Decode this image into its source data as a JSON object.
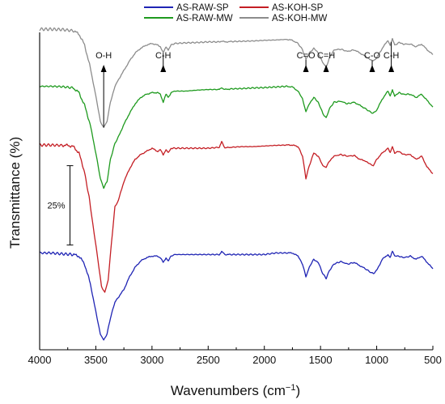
{
  "chart_data": {
    "type": "line",
    "xlabel": "Wavenumbers (cm",
    "xlabel_sup": "−1",
    "xlabel_end": ")",
    "ylabel": "Transmittance (%)",
    "xlim": [
      4000,
      500
    ],
    "x_ticks": [
      4000,
      3500,
      3000,
      2500,
      2000,
      1500,
      1000,
      500
    ],
    "x_tick_labels": [
      "4000",
      "3500",
      "3000",
      "2500",
      "2000",
      "1500",
      "1000",
      "500"
    ],
    "ylim": [
      0,
      100
    ],
    "y_ticks_shown": false,
    "grid": false,
    "legend_position": "top",
    "scale_bar": {
      "label": "25%",
      "x": 3730,
      "y_low": 33,
      "y_high": 58
    },
    "annotations": [
      {
        "label": "O-H",
        "x": 3430
      },
      {
        "label": "C-H",
        "x": 2900
      },
      {
        "label": "C=O",
        "x": 1630
      },
      {
        "label": "C=H",
        "x": 1450
      },
      {
        "label": "C-O",
        "x": 1040
      },
      {
        "label": "C-H",
        "x": 870
      }
    ],
    "series": [
      {
        "name": "AS-RAW-SP",
        "color": "#1f24b4",
        "x": [
          4000,
          3900,
          3800,
          3700,
          3650,
          3600,
          3550,
          3500,
          3460,
          3430,
          3400,
          3370,
          3330,
          3300,
          3250,
          3200,
          3150,
          3100,
          3050,
          3000,
          2950,
          2925,
          2900,
          2875,
          2855,
          2830,
          2800,
          2700,
          2600,
          2500,
          2400,
          2380,
          2350,
          2300,
          2200,
          2100,
          2000,
          1900,
          1800,
          1750,
          1700,
          1660,
          1630,
          1600,
          1560,
          1520,
          1480,
          1450,
          1420,
          1380,
          1320,
          1260,
          1200,
          1150,
          1100,
          1060,
          1030,
          1000,
          950,
          900,
          880,
          860,
          840,
          800,
          760,
          700,
          650,
          600,
          550,
          500
        ],
        "values": [
          30.5,
          30.5,
          30.2,
          30,
          29.5,
          27,
          21,
          12,
          5,
          3,
          5,
          10,
          15,
          16.5,
          19,
          23,
          26,
          28,
          29,
          29.5,
          29.5,
          29,
          27.5,
          29,
          28,
          29.5,
          30,
          30,
          30,
          30,
          30,
          31,
          30,
          30,
          30,
          30,
          30,
          30.5,
          30.5,
          30.5,
          29.5,
          27,
          23,
          26,
          28.5,
          27.5,
          24,
          22.5,
          25,
          27,
          27.8,
          27,
          27.5,
          26.5,
          25.5,
          24.5,
          24,
          25,
          28.5,
          30,
          29,
          31,
          29.5,
          29.5,
          29,
          29.5,
          28.5,
          29.5,
          27.5,
          25.5
        ]
      },
      {
        "name": "AS-KOH-SP",
        "color": "#c41e24",
        "x": [
          4000,
          3900,
          3800,
          3750,
          3700,
          3650,
          3600,
          3560,
          3520,
          3480,
          3450,
          3420,
          3390,
          3360,
          3330,
          3300,
          3250,
          3200,
          3150,
          3100,
          3050,
          3000,
          2950,
          2925,
          2900,
          2875,
          2855,
          2830,
          2800,
          2700,
          2600,
          2500,
          2400,
          2380,
          2350,
          2300,
          2200,
          2100,
          2000,
          1900,
          1800,
          1750,
          1700,
          1660,
          1630,
          1600,
          1560,
          1520,
          1480,
          1450,
          1420,
          1380,
          1320,
          1260,
          1200,
          1150,
          1100,
          1060,
          1030,
          1000,
          950,
          900,
          880,
          860,
          840,
          800,
          760,
          700,
          650,
          600,
          550,
          500
        ],
        "values": [
          64.5,
          64.5,
          64.4,
          64.4,
          64,
          62,
          56,
          48,
          38,
          28,
          20,
          18,
          22,
          34,
          45,
          47,
          53,
          57,
          60,
          61.5,
          62.5,
          63.5,
          62.5,
          63,
          61.5,
          63,
          62,
          63.5,
          63.5,
          63.5,
          63.5,
          63.5,
          63.8,
          65.5,
          63.6,
          63.8,
          64,
          64,
          64.2,
          64.4,
          64.5,
          64.5,
          64,
          61,
          54,
          58,
          62,
          61,
          58,
          57.5,
          59.5,
          61,
          61.5,
          61,
          61.2,
          60,
          59.5,
          58.5,
          58,
          60,
          62,
          63.5,
          62,
          64,
          62,
          62.5,
          61.5,
          61.5,
          60,
          61,
          57.5,
          55.5
        ]
      },
      {
        "name": "AS-RAW-MW",
        "color": "#1e9a1e",
        "x": [
          4000,
          3900,
          3800,
          3700,
          3650,
          3600,
          3550,
          3500,
          3460,
          3430,
          3400,
          3370,
          3330,
          3300,
          3250,
          3200,
          3150,
          3100,
          3050,
          3000,
          2950,
          2925,
          2900,
          2875,
          2855,
          2830,
          2800,
          2700,
          2600,
          2500,
          2400,
          2380,
          2350,
          2300,
          2200,
          2100,
          2000,
          1900,
          1800,
          1750,
          1700,
          1660,
          1630,
          1600,
          1560,
          1520,
          1480,
          1450,
          1420,
          1380,
          1320,
          1260,
          1200,
          1150,
          1100,
          1060,
          1030,
          1000,
          950,
          900,
          880,
          860,
          840,
          800,
          760,
          700,
          650,
          600,
          550,
          500
        ],
        "values": [
          83,
          83,
          82.9,
          82.5,
          81,
          77,
          71,
          62,
          54,
          51,
          53,
          60,
          65,
          67,
          71,
          74.5,
          77.5,
          79.5,
          80.5,
          81,
          81,
          80.5,
          78,
          80.5,
          79.5,
          81,
          81.5,
          81.5,
          81.8,
          82,
          82,
          82.5,
          82,
          82.2,
          82.3,
          82.5,
          82.6,
          82.8,
          83,
          82.8,
          81.5,
          79,
          75,
          77.5,
          79.5,
          78,
          74.5,
          73,
          76,
          78,
          78.3,
          77.5,
          78,
          77,
          76,
          75,
          74.5,
          75.5,
          79,
          81.5,
          80,
          82,
          80,
          81,
          80.5,
          80.5,
          79.5,
          80.5,
          78.5,
          76.5
        ]
      },
      {
        "name": "AS-KOH-MW",
        "color": "#8c8c8c",
        "x": [
          4000,
          3900,
          3800,
          3700,
          3650,
          3600,
          3550,
          3500,
          3460,
          3430,
          3400,
          3370,
          3330,
          3300,
          3250,
          3200,
          3150,
          3100,
          3050,
          3000,
          2950,
          2925,
          2900,
          2875,
          2855,
          2830,
          2800,
          2700,
          2600,
          2500,
          2400,
          2380,
          2350,
          2300,
          2200,
          2100,
          2000,
          1900,
          1800,
          1750,
          1700,
          1660,
          1630,
          1600,
          1560,
          1520,
          1480,
          1450,
          1420,
          1380,
          1320,
          1260,
          1200,
          1150,
          1100,
          1060,
          1030,
          1000,
          950,
          900,
          880,
          860,
          840,
          800,
          760,
          700,
          650,
          600,
          550,
          500
        ],
        "values": [
          101,
          101,
          100.9,
          100.5,
          99.5,
          96,
          89,
          80,
          72,
          70,
          72,
          78,
          83,
          85,
          88,
          91,
          93.5,
          95,
          96,
          96.5,
          96,
          95.5,
          93.5,
          95.5,
          94.5,
          96,
          96.5,
          96.7,
          96.8,
          97,
          97,
          97.3,
          97,
          97.1,
          97.2,
          97.3,
          97.5,
          97.6,
          97.8,
          97.5,
          96.5,
          94.5,
          91.5,
          93.5,
          95,
          93.5,
          90.5,
          89,
          92,
          94.5,
          94.7,
          94,
          94.5,
          93.5,
          92.5,
          91.5,
          91,
          92,
          95,
          97.5,
          96,
          98,
          96,
          96.8,
          96.3,
          96.3,
          95.5,
          96.3,
          94.5,
          93
        ]
      }
    ]
  }
}
